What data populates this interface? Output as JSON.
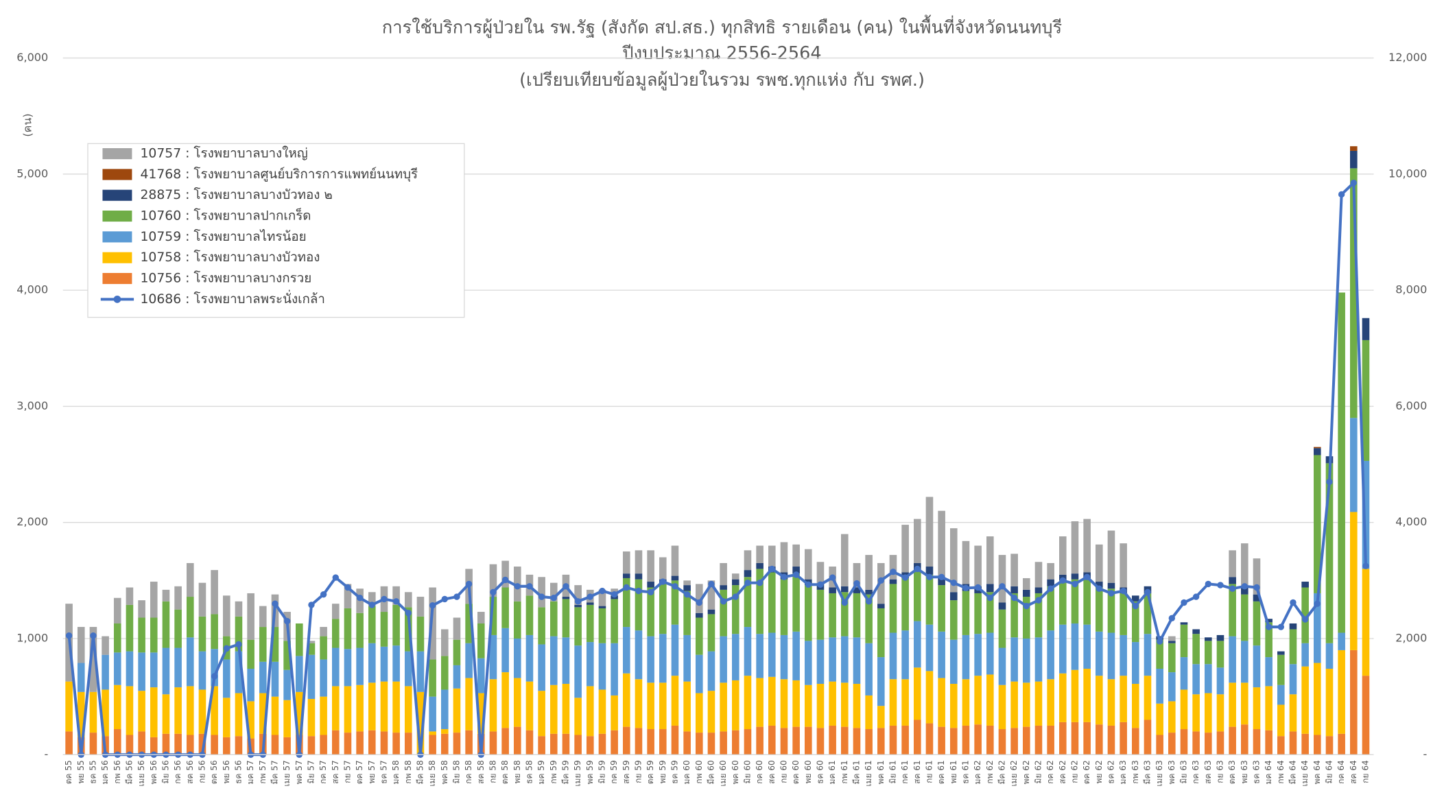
{
  "chart_data": {
    "type": "bar",
    "stacked": true,
    "title": [
      "การใช้บริการผู้ป่วยใน  รพ.รัฐ (สังกัด สป.สธ.) ทุกสิทธิ รายเดือน (คน) ในพื้นที่จังหวัดนนทบุรี",
      "ปีงบประมาณ 2556-2564",
      "(เปรียบเทียบข้อมูลผู้ป่วยในรวม รพช.ทุกแห่ง กับ รพศ.)"
    ],
    "y_label": "(คน)",
    "grid": true,
    "legend": "upper left",
    "ylim": [
      0,
      6000
    ],
    "yticks": [
      {
        "value": 0,
        "label": "-"
      },
      {
        "value": 1000,
        "label": "1,000"
      },
      {
        "value": 2000,
        "label": "2,000"
      },
      {
        "value": 3000,
        "label": "3,000"
      },
      {
        "value": 4000,
        "label": "4,000"
      },
      {
        "value": 5000,
        "label": "5,000"
      },
      {
        "value": 6000,
        "label": "6,000"
      }
    ],
    "y2lim": [
      0,
      12000
    ],
    "y2ticks": [
      {
        "value": 0,
        "label": "-"
      },
      {
        "value": 2000,
        "label": "2,000"
      },
      {
        "value": 4000,
        "label": "4,000"
      },
      {
        "value": 6000,
        "label": "6,000"
      },
      {
        "value": 8000,
        "label": "8,000"
      },
      {
        "value": 10000,
        "label": "10,000"
      },
      {
        "value": 12000,
        "label": "12,000"
      }
    ],
    "categories": [
      "ตค 55",
      "พย 55",
      "ธค 55",
      "มค 56",
      "กพ 56",
      "มีค 56",
      "เมย 56",
      "พค 56",
      "มิย 56",
      "กค 56",
      "สค 56",
      "กย 56",
      "ตค 56",
      "พย 56",
      "ธค 56",
      "มค 57",
      "กพ 57",
      "มีค 57",
      "เมย 57",
      "พค 57",
      "มิย 57",
      "กค 57",
      "สค 57",
      "กย 57",
      "ตค 57",
      "พย 57",
      "ธค 57",
      "มค 58",
      "กพ 58",
      "มีค 58",
      "เมย 58",
      "พค 58",
      "มิย 58",
      "กค 58",
      "สค 58",
      "กย 58",
      "ตค 58",
      "พย 58",
      "ธค 58",
      "มค 59",
      "กพ 59",
      "มีค 59",
      "เมย 59",
      "พค 59",
      "มิย 59",
      "กค 59",
      "สค 59",
      "กย 59",
      "ตค 59",
      "พย 59",
      "ธค 59",
      "มค 60",
      "กพ 60",
      "มีค 60",
      "เมย 60",
      "พค 60",
      "มิย 60",
      "กค 60",
      "สค 60",
      "กย 60",
      "ตค 60",
      "พย 60",
      "ธค 60",
      "มค 61",
      "กพ 61",
      "มีค 61",
      "เมย 61",
      "พค 61",
      "มิย 61",
      "กค 61",
      "สค 61",
      "กย 61",
      "ตค 61",
      "พย 61",
      "ธค 61",
      "มค 62",
      "กพ 62",
      "มีค 62",
      "เมย 62",
      "พค 62",
      "มิย 62",
      "กค 62",
      "สค 62",
      "กย 62",
      "ตค 62",
      "พย 62",
      "ธค 62",
      "มค 63",
      "กพ 63",
      "มีค 63",
      "เมย 63",
      "พค 63",
      "มิย 63",
      "กค 63",
      "สค 63",
      "กย 63",
      "ตค 63",
      "พย 63",
      "ธค 63",
      "มค 64",
      "กพ 64",
      "มีค 64",
      "เมย 64",
      "พค 64",
      "มิย 64",
      "กค 64",
      "สค 64",
      "กย 64"
    ],
    "series": [
      {
        "name": "10756 : โรงพยาบาลบางกรวย",
        "color": "#ed7d31",
        "values": [
          200,
          150,
          190,
          160,
          220,
          170,
          200,
          150,
          180,
          180,
          170,
          180,
          170,
          150,
          160,
          140,
          180,
          170,
          150,
          170,
          160,
          170,
          210,
          190,
          200,
          210,
          200,
          190,
          190,
          0,
          170,
          180,
          190,
          210,
          180,
          200,
          230,
          240,
          210,
          160,
          180,
          180,
          170,
          160,
          180,
          210,
          240,
          230,
          220,
          220,
          250,
          200,
          190,
          190,
          200,
          210,
          220,
          240,
          250,
          230,
          240,
          240,
          230,
          250,
          240,
          230,
          220,
          230,
          250,
          250,
          300,
          270,
          240,
          230,
          250,
          260,
          250,
          220,
          230,
          240,
          250,
          250,
          280,
          280,
          280,
          260,
          250,
          280,
          230,
          300,
          170,
          190,
          220,
          200,
          190,
          200,
          240,
          260,
          220,
          210,
          160,
          200,
          180,
          170,
          160,
          180,
          900,
          680
        ]
      },
      {
        "name": "10758 : โรงพยาบาลบางบัวทอง",
        "color": "#ffc000",
        "values": [
          430,
          390,
          350,
          400,
          380,
          420,
          350,
          430,
          340,
          400,
          420,
          380,
          420,
          340,
          370,
          320,
          350,
          330,
          320,
          370,
          320,
          330,
          380,
          400,
          400,
          410,
          430,
          440,
          400,
          540,
          30,
          40,
          380,
          450,
          350,
          450,
          480,
          420,
          420,
          390,
          420,
          430,
          320,
          430,
          380,
          300,
          460,
          420,
          400,
          400,
          430,
          430,
          340,
          360,
          420,
          430,
          460,
          420,
          420,
          420,
          400,
          360,
          380,
          380,
          380,
          380,
          290,
          190,
          400,
          400,
          450,
          450,
          420,
          380,
          400,
          420,
          440,
          380,
          400,
          380,
          380,
          400,
          420,
          450,
          460,
          420,
          400,
          400,
          380,
          380,
          270,
          270,
          340,
          320,
          340,
          320,
          380,
          360,
          360,
          380,
          270,
          320,
          580,
          620,
          580,
          720,
          1190,
          920
        ]
      },
      {
        "name": "10759 : โรงพยาบาลไทรน้อย",
        "color": "#5b9bd5",
        "values": [
          0,
          250,
          0,
          300,
          280,
          300,
          330,
          300,
          400,
          340,
          420,
          330,
          320,
          330,
          360,
          280,
          270,
          300,
          260,
          310,
          380,
          320,
          330,
          320,
          320,
          340,
          300,
          310,
          300,
          350,
          300,
          340,
          200,
          300,
          300,
          380,
          380,
          340,
          400,
          400,
          420,
          400,
          450,
          380,
          400,
          450,
          400,
          420,
          400,
          420,
          440,
          400,
          330,
          340,
          400,
          400,
          420,
          380,
          380,
          380,
          420,
          380,
          380,
          380,
          400,
          400,
          450,
          420,
          400,
          420,
          400,
          400,
          400,
          380,
          380,
          360,
          360,
          320,
          380,
          380,
          380,
          420,
          420,
          400,
          380,
          380,
          400,
          350,
          360,
          360,
          300,
          250,
          280,
          260,
          250,
          230,
          400,
          360,
          360,
          250,
          170,
          260,
          200,
          600,
          220,
          150,
          810,
          930
        ]
      },
      {
        "name": "10760 : โรงพยาบาลปากเกร็ด",
        "color": "#70ad47",
        "values": [
          0,
          0,
          0,
          0,
          250,
          400,
          300,
          300,
          400,
          330,
          350,
          300,
          300,
          200,
          300,
          250,
          300,
          300,
          250,
          280,
          100,
          200,
          250,
          350,
          300,
          320,
          300,
          350,
          380,
          300,
          320,
          290,
          220,
          340,
          300,
          330,
          350,
          320,
          340,
          320,
          300,
          330,
          330,
          320,
          300,
          380,
          420,
          440,
          420,
          430,
          380,
          380,
          320,
          320,
          400,
          420,
          430,
          560,
          520,
          480,
          500,
          480,
          430,
          380,
          380,
          380,
          420,
          420,
          420,
          450,
          440,
          430,
          400,
          340,
          380,
          350,
          350,
          330,
          380,
          360,
          380,
          380,
          380,
          380,
          400,
          380,
          380,
          360,
          350,
          350,
          250,
          250,
          280,
          260,
          200,
          230,
          450,
          400,
          380,
          300,
          260,
          300,
          480,
          1190,
          1550,
          2930,
          2150,
          1040
        ]
      },
      {
        "name": "28875 : โรงพยาบาลบางบัวทอง ๒",
        "color": "#264478",
        "values": [
          0,
          0,
          0,
          0,
          0,
          0,
          0,
          0,
          0,
          0,
          0,
          0,
          0,
          0,
          0,
          0,
          0,
          0,
          0,
          0,
          0,
          0,
          0,
          0,
          0,
          0,
          0,
          0,
          0,
          0,
          0,
          0,
          0,
          0,
          0,
          0,
          0,
          0,
          0,
          0,
          0,
          20,
          20,
          20,
          20,
          30,
          40,
          50,
          50,
          40,
          40,
          50,
          40,
          40,
          40,
          50,
          60,
          50,
          50,
          60,
          60,
          50,
          50,
          50,
          50,
          50,
          40,
          40,
          40,
          50,
          60,
          70,
          60,
          70,
          60,
          60,
          70,
          60,
          60,
          60,
          50,
          60,
          50,
          50,
          50,
          50,
          50,
          50,
          50,
          60,
          30,
          20,
          20,
          40,
          30,
          50,
          60,
          60,
          60,
          30,
          30,
          50,
          50,
          60,
          60,
          0,
          150,
          190
        ]
      },
      {
        "name": "41768 : โรงพยาบาลศูนย์บริการการแพทย์นนทบุรี",
        "color": "#9e480e",
        "values": [
          0,
          0,
          0,
          0,
          0,
          0,
          0,
          0,
          0,
          0,
          0,
          0,
          0,
          0,
          0,
          0,
          0,
          0,
          0,
          0,
          0,
          0,
          0,
          0,
          0,
          0,
          0,
          0,
          0,
          0,
          0,
          0,
          0,
          0,
          0,
          0,
          0,
          0,
          0,
          0,
          0,
          0,
          0,
          0,
          0,
          0,
          0,
          0,
          0,
          0,
          0,
          0,
          0,
          0,
          0,
          0,
          0,
          0,
          0,
          0,
          0,
          0,
          0,
          0,
          0,
          0,
          0,
          0,
          0,
          0,
          0,
          0,
          0,
          0,
          0,
          0,
          0,
          0,
          0,
          0,
          0,
          0,
          0,
          0,
          0,
          0,
          0,
          0,
          0,
          0,
          0,
          0,
          0,
          0,
          0,
          0,
          0,
          0,
          0,
          0,
          0,
          0,
          0,
          10,
          0,
          0,
          40,
          0
        ]
      },
      {
        "name": "10757 : โรงพยาบาลบางใหญ่",
        "color": "#a5a5a5",
        "values": [
          670,
          310,
          560,
          160,
          220,
          150,
          150,
          310,
          100,
          200,
          290,
          290,
          380,
          350,
          130,
          400,
          180,
          280,
          250,
          0,
          20,
          80,
          130,
          210,
          210,
          120,
          220,
          160,
          130,
          170,
          620,
          230,
          190,
          300,
          100,
          280,
          230,
          300,
          180,
          260,
          160,
          190,
          170,
          110,
          140,
          60,
          190,
          200,
          270,
          190,
          260,
          40,
          250,
          250,
          190,
          50,
          170,
          150,
          180,
          260,
          190,
          260,
          190,
          180,
          450,
          210,
          300,
          350,
          210,
          410,
          380,
          600,
          580,
          550,
          370,
          350,
          410,
          410,
          280,
          100,
          220,
          140,
          330,
          450,
          460,
          320,
          450,
          380,
          0,
          0,
          0,
          40,
          0,
          0,
          0,
          0,
          230,
          380,
          310,
          0,
          0,
          0,
          0,
          0,
          0,
          0,
          0,
          0
        ]
      },
      {
        "name": "10686 : โรงพยาบาลพระนั่งเกล้า",
        "color": "#4472c4",
        "type": "line",
        "axis": "y2",
        "values": [
          2050,
          0,
          2050,
          0,
          0,
          0,
          0,
          0,
          0,
          0,
          0,
          0,
          1350,
          1830,
          1900,
          0,
          0,
          2600,
          2300,
          0,
          2580,
          2760,
          3050,
          2880,
          2700,
          2580,
          2680,
          2640,
          2440,
          0,
          2570,
          2680,
          2720,
          2940,
          0,
          2800,
          3010,
          2900,
          2900,
          2720,
          2700,
          2900,
          2640,
          2720,
          2820,
          2760,
          2880,
          2820,
          2800,
          2980,
          2900,
          2760,
          2620,
          2940,
          2640,
          2720,
          2960,
          2960,
          3200,
          3060,
          3100,
          2930,
          2930,
          3050,
          2620,
          2950,
          2640,
          3000,
          3150,
          3050,
          3200,
          3060,
          3060,
          2960,
          2870,
          2880,
          2700,
          2900,
          2700,
          2560,
          2660,
          2860,
          3000,
          2940,
          3060,
          2860,
          2780,
          2820,
          2560,
          2800,
          1950,
          2350,
          2620,
          2720,
          2940,
          2920,
          2860,
          2900,
          2880,
          2200,
          2200,
          2620,
          2330,
          2600,
          4700,
          9650,
          9850,
          3250
        ]
      }
    ]
  }
}
